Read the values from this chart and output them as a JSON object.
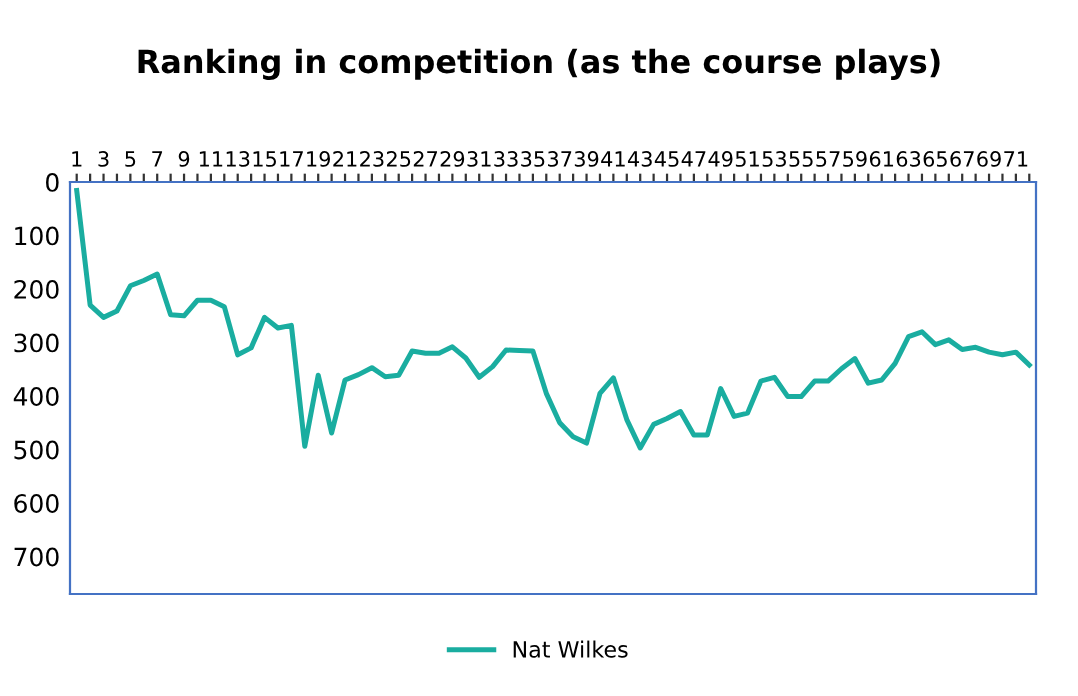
{
  "chart_data": {
    "type": "line",
    "title": "Ranking in competition (as the course plays)",
    "categories": [
      "1",
      null,
      "3",
      null,
      "5",
      null,
      "7",
      null,
      "9",
      null,
      "11",
      null,
      "13",
      null,
      "15",
      null,
      "17",
      null,
      "19",
      null,
      "21",
      null,
      "23",
      null,
      "25",
      null,
      "27",
      null,
      "29",
      null,
      "31",
      null,
      "33",
      null,
      "35",
      null,
      "37",
      null,
      "39",
      null,
      "41",
      null,
      "43",
      null,
      "45",
      null,
      "47",
      null,
      "49",
      null,
      "51",
      null,
      "53",
      null,
      "55",
      null,
      "57",
      null,
      "59",
      null,
      "61",
      null,
      "63",
      null,
      "65",
      null,
      "67",
      null,
      "69",
      null,
      "71",
      null
    ],
    "series": [
      {
        "name": "Nat Wilkes",
        "color": "#1aada0",
        "values": [
          16,
          230,
          253,
          241,
          194,
          184,
          172,
          248,
          250,
          221,
          221,
          233,
          323,
          310,
          253,
          273,
          268,
          494,
          361,
          469,
          370,
          360,
          347,
          364,
          361,
          316,
          320,
          320,
          308,
          329,
          365,
          345,
          314,
          315,
          316,
          395,
          450,
          476,
          488,
          395,
          366,
          444,
          497,
          453,
          442,
          429,
          473,
          473,
          386,
          438,
          432,
          372,
          365,
          401,
          401,
          372,
          372,
          349,
          330,
          376,
          370,
          339,
          289,
          280,
          304,
          295,
          313,
          309,
          318,
          323,
          318,
          342
        ]
      }
    ],
    "ylim": [
      770,
      0
    ],
    "yticks": [
      0,
      100,
      200,
      300,
      400,
      500,
      600,
      700
    ],
    "grid": false,
    "legend": "bottom",
    "marker": "none",
    "line_style": "solid"
  }
}
